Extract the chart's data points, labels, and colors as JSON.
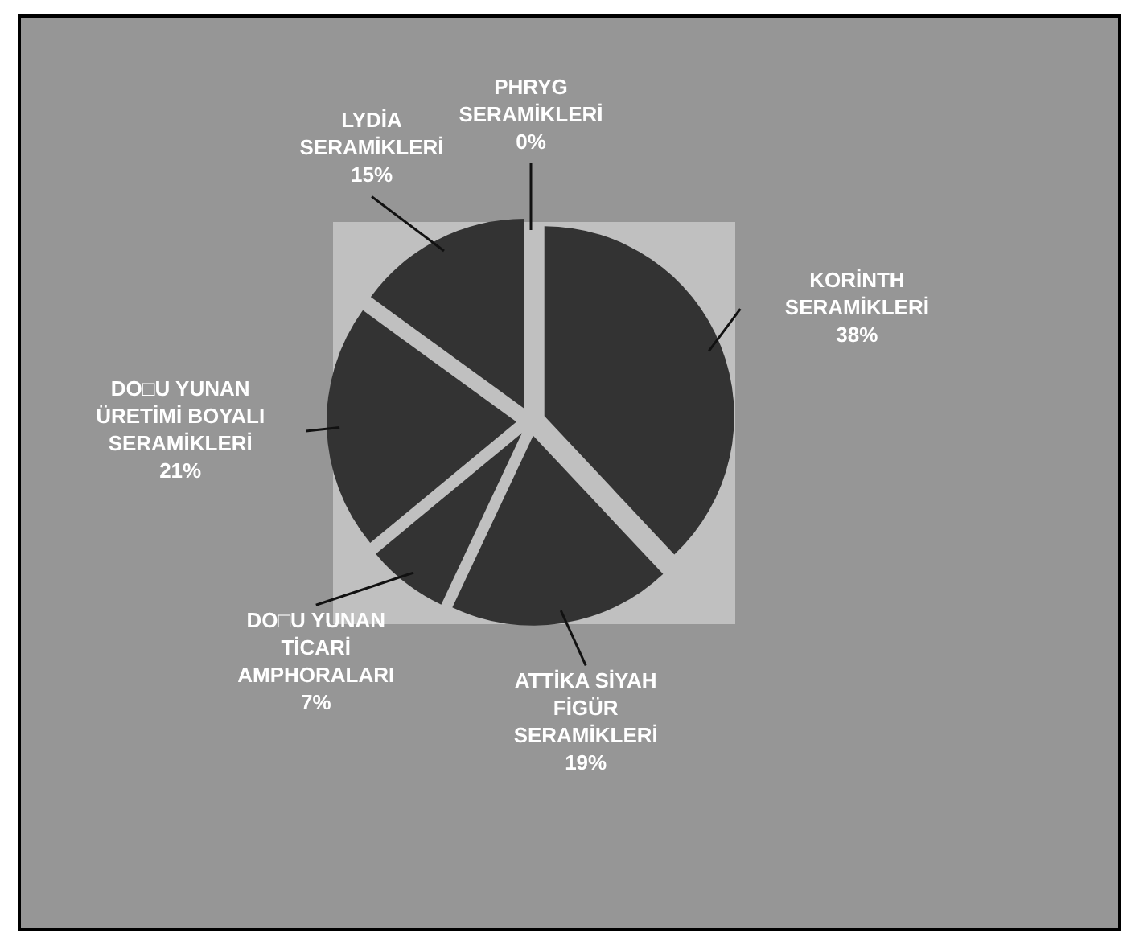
{
  "chart_data": {
    "type": "pie",
    "categories": [
      "KORİNTH\nSERAMİKLERİ",
      "ATTİKA SİYAH\nFİGÜR\nSERAMİKLERİ",
      "DO□U YUNAN\nTİCARİ\nAMPHORALARI",
      "DO□U YUNAN\nÜRETİMİ BOYALI\nSERAMİKLERİ",
      "LYDİA\nSERAMİKLERİ",
      "PHRYG\nSERAMİKLERİ"
    ],
    "values": [
      38,
      19,
      7,
      21,
      15,
      0
    ],
    "colors": [
      "#333333",
      "#333333",
      "#333333",
      "#333333",
      "#333333",
      "#333333"
    ],
    "value_labels": [
      "38%",
      "19%",
      "7%",
      "21%",
      "15%",
      "0%"
    ]
  }
}
